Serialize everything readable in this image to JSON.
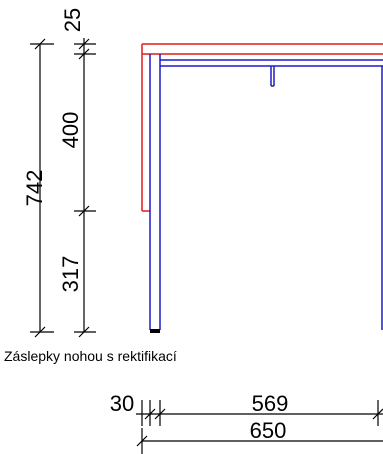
{
  "dimensions": {
    "total_height": "742",
    "top_offset": "25",
    "upper_height": "400",
    "lower_height": "317",
    "leg_offset": "30",
    "inner_length": "569",
    "total_length": "650"
  },
  "note": "Záslepky nohou s rektifikací",
  "colors": {
    "outline": "#e01c1c",
    "frame": "#1c1cc8",
    "dimension": "#000000"
  }
}
